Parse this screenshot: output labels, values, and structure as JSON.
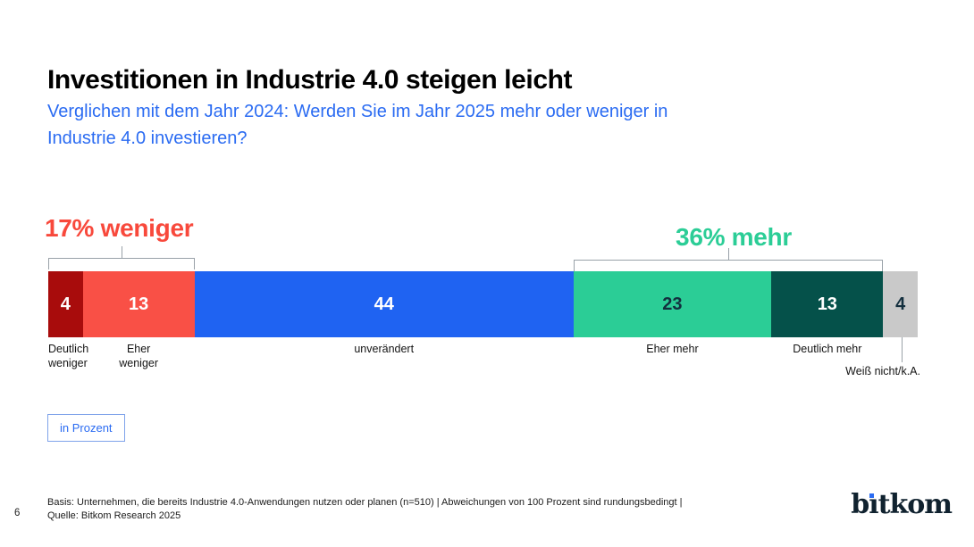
{
  "header": {
    "title": "Investitionen in Industrie 4.0 steigen leicht",
    "subtitle_lines": [
      "Verglichen mit dem Jahr 2024: Werden Sie im Jahr 2025 mehr oder weniger in",
      "Industrie 4.0 investieren?"
    ],
    "subtitle_color": "#2A6BF2"
  },
  "chart_data": {
    "type": "bar",
    "stacked": true,
    "orientation": "horizontal",
    "unit_label": "in Prozent",
    "categories": [
      "Deutlich weniger",
      "Eher weniger",
      "unverändert",
      "Eher mehr",
      "Deutlich mehr",
      "Weiß nicht/k.A."
    ],
    "values": [
      4,
      13,
      44,
      23,
      13,
      4
    ],
    "segments": [
      {
        "label": "Deutlich weniger",
        "label_lines": [
          "Deutlich",
          "weniger"
        ],
        "value": 4,
        "color": "#A80C0C",
        "value_text_color": "#FFFFFF"
      },
      {
        "label": "Eher weniger",
        "label_lines": [
          "Eher",
          "weniger"
        ],
        "value": 13,
        "color": "#F95046",
        "value_text_color": "#FFFFFF"
      },
      {
        "label": "unverändert",
        "label_lines": [
          "unverändert"
        ],
        "value": 44,
        "color": "#1F63F2",
        "value_text_color": "#FFFFFF"
      },
      {
        "label": "Eher mehr",
        "label_lines": [
          "Eher mehr"
        ],
        "value": 23,
        "color": "#2BCD96",
        "value_text_color": "#132F3E"
      },
      {
        "label": "Deutlich mehr",
        "label_lines": [
          "Deutlich mehr"
        ],
        "value": 13,
        "color": "#05514A",
        "value_text_color": "#FFFFFF"
      },
      {
        "label": "Weiß nicht/k.A.",
        "label_lines": null,
        "value": 4,
        "color": "#C9C9C9",
        "value_text_color": "#132F3E"
      }
    ],
    "group_annotations": [
      {
        "text": "17% weniger",
        "total": 17,
        "covers": [
          "Deutlich weniger",
          "Eher weniger"
        ],
        "color": "#F8493C",
        "side": "left"
      },
      {
        "text": "36% mehr",
        "total": 36,
        "covers": [
          "Eher mehr",
          "Deutlich mehr"
        ],
        "color": "#2BCD96",
        "side": "right"
      }
    ]
  },
  "footer": {
    "page_number": "6",
    "basis_line": "Basis: Unternehmen, die bereits Industrie 4.0-Anwendungen nutzen oder planen (n=510) | Abweichungen von 100 Prozent sind rundungsbedingt |",
    "source_line": "Quelle: Bitkom Research 2025",
    "logo": {
      "pre": "b",
      "i_dotless": "ı",
      "post": "tkom",
      "dot_color": "#2A6BF2",
      "text_color": "#10222F"
    }
  }
}
